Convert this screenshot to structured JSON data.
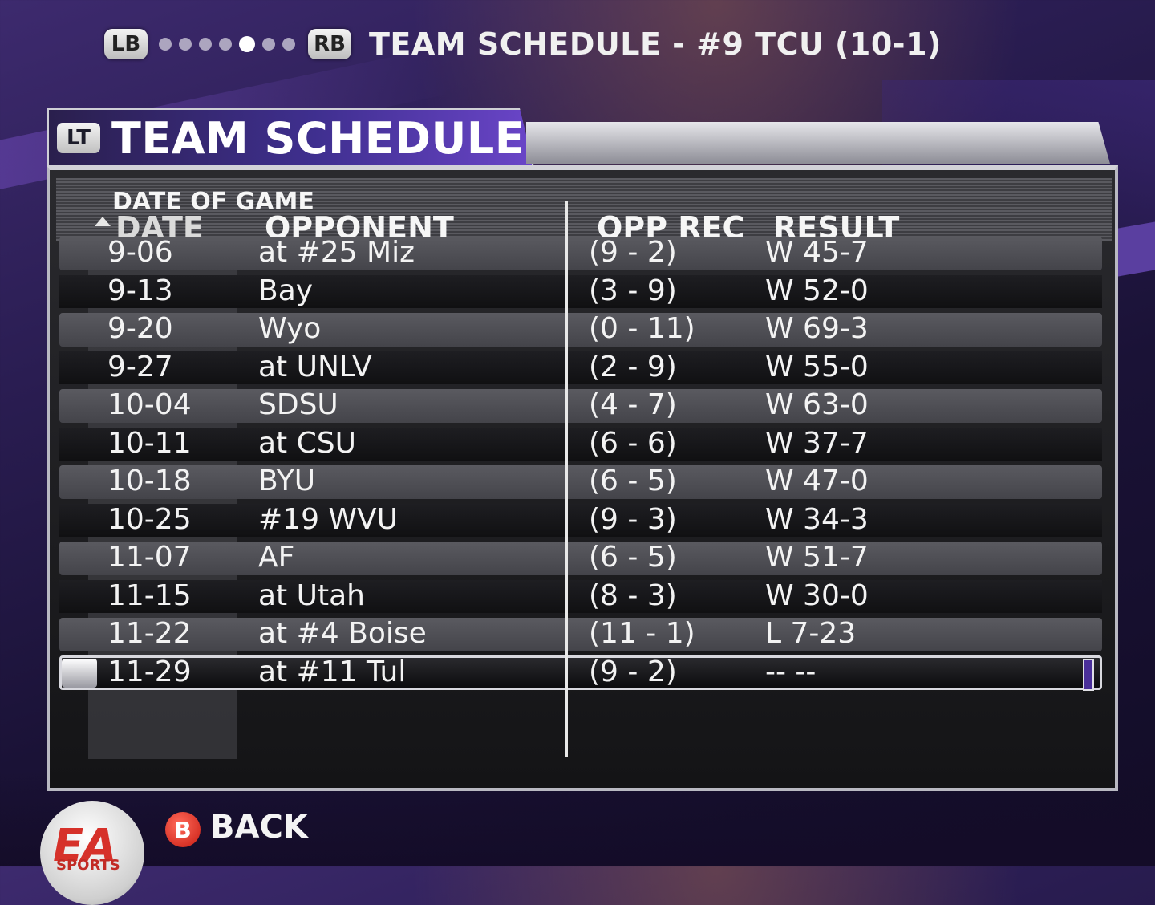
{
  "top": {
    "lb_label": "LB",
    "rb_label": "RB",
    "title": "TEAM SCHEDULE - #9 TCU (10-1)",
    "page_dots": 7,
    "active_dot": 4
  },
  "panel": {
    "lt_label": "LT",
    "title": "TEAM SCHEDULE"
  },
  "columns": {
    "sort_label": "DATE OF GAME",
    "date": "DATE",
    "opponent": "OPPONENT",
    "opp_rec": "OPP REC",
    "result": "RESULT"
  },
  "rows": [
    {
      "date": "9-06",
      "opponent": "at #25 Miz",
      "opp_rec": "(9 - 2)",
      "result": "W 45-7"
    },
    {
      "date": "9-13",
      "opponent": "Bay",
      "opp_rec": "(3 - 9)",
      "result": "W 52-0"
    },
    {
      "date": "9-20",
      "opponent": "Wyo",
      "opp_rec": "(0 - 11)",
      "result": "W 69-3"
    },
    {
      "date": "9-27",
      "opponent": "at UNLV",
      "opp_rec": "(2 - 9)",
      "result": "W 55-0"
    },
    {
      "date": "10-04",
      "opponent": "SDSU",
      "opp_rec": "(4 - 7)",
      "result": "W 63-0"
    },
    {
      "date": "10-11",
      "opponent": "at CSU",
      "opp_rec": "(6 - 6)",
      "result": "W 37-7"
    },
    {
      "date": "10-18",
      "opponent": "BYU",
      "opp_rec": "(6 - 5)",
      "result": "W 47-0"
    },
    {
      "date": "10-25",
      "opponent": "#19 WVU",
      "opp_rec": "(9 - 3)",
      "result": "W 34-3"
    },
    {
      "date": "11-07",
      "opponent": "AF",
      "opp_rec": "(6 - 5)",
      "result": "W 51-7"
    },
    {
      "date": "11-15",
      "opponent": "at Utah",
      "opp_rec": "(8 - 3)",
      "result": "W 30-0"
    },
    {
      "date": "11-22",
      "opponent": "at #4 Boise",
      "opp_rec": "(11 - 1)",
      "result": "L 7-23"
    },
    {
      "date": "11-29",
      "opponent": "at #11 Tul",
      "opp_rec": "(9 - 2)",
      "result": "-- --"
    }
  ],
  "selected_row": 11,
  "footer": {
    "b_label": "B",
    "back_label": "BACK",
    "logo_text": "EA",
    "logo_subtext": "SPORTS"
  },
  "colors": {
    "accent_purple": "#6a45c8",
    "background": "#2a1d52",
    "b_button_red": "#c71c12"
  }
}
